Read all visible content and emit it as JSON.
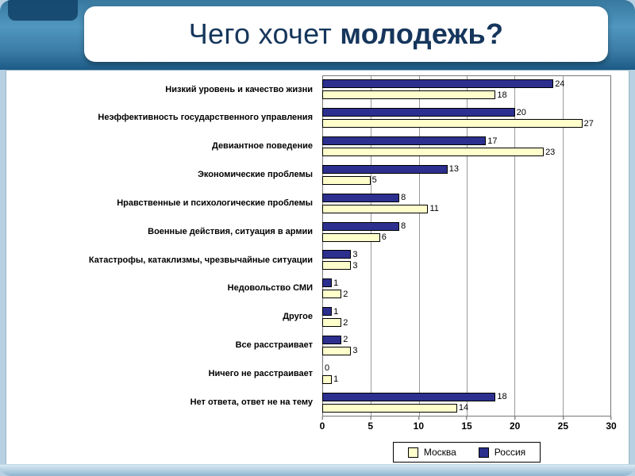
{
  "header": {
    "title_regular": "Чего хочет ",
    "title_bold": "молодежь?"
  },
  "chart_data": {
    "type": "bar",
    "orientation": "horizontal",
    "title": "",
    "categories": [
      "Низкий уровень и качество жизни",
      "Неэффективность государственного управления",
      "Девиантное поведение",
      "Экономические проблемы",
      "Нравственные и психологические проблемы",
      "Военные действия, ситуация в армии",
      "Катастрофы, катаклизмы, чрезвычайные ситуации",
      "Недовольство СМИ",
      "Другое",
      "Все расстраивает",
      "Ничего не расстраивает",
      "Нет ответа, ответ не на тему"
    ],
    "series": [
      {
        "name": "Россия",
        "key": "russia",
        "color": "#2c2f8e",
        "values": [
          24,
          20,
          17,
          13,
          8,
          8,
          3,
          1,
          1,
          2,
          0,
          18
        ]
      },
      {
        "name": "Москва",
        "key": "moscow",
        "color": "#ffffcc",
        "values": [
          18,
          27,
          23,
          5,
          11,
          6,
          3,
          2,
          2,
          3,
          1,
          14
        ]
      }
    ],
    "xlim": [
      0,
      30
    ],
    "xticks": [
      0,
      5,
      10,
      15,
      20,
      25,
      30
    ],
    "gridlines": true,
    "legend_position": "bottom",
    "legend": [
      {
        "label": "Москва",
        "color": "#ffffcc"
      },
      {
        "label": "Россия",
        "color": "#2c2f8e"
      }
    ]
  }
}
